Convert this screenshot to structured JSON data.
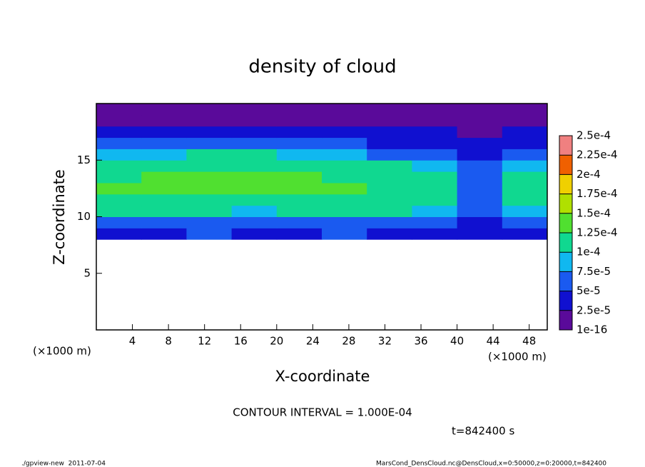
{
  "chart_data": {
    "type": "heatmap",
    "title": "density of cloud",
    "x_label": "X-coordinate",
    "y_label": "Z-coordinate",
    "x_unit": "(×1000 m)",
    "y_unit": "(×1000 m)",
    "xlim": [
      0,
      50
    ],
    "xticks": [
      4,
      8,
      12,
      16,
      20,
      24,
      28,
      32,
      36,
      40,
      44,
      48
    ],
    "ylim": [
      0,
      20
    ],
    "yticks": [
      5,
      10,
      15
    ],
    "x_edges": [
      0,
      5,
      10,
      15,
      20,
      25,
      30,
      35,
      40,
      45,
      50
    ],
    "z_edges": [
      8,
      9,
      10,
      11,
      12,
      13,
      14,
      15,
      16,
      17,
      18,
      19,
      20
    ],
    "values": [
      [
        4e-05,
        4e-05,
        5e-05,
        4e-05,
        4e-05,
        5e-05,
        4e-05,
        4e-05,
        3e-05,
        4e-05
      ],
      [
        7e-05,
        7e-05,
        7e-05,
        6e-05,
        7e-05,
        7e-05,
        7e-05,
        6e-05,
        4e-05,
        6e-05
      ],
      [
        0.0001,
        0.0001,
        0.0001,
        8e-05,
        0.0001,
        0.0001,
        0.0001,
        8e-05,
        5e-05,
        8e-05
      ],
      [
        0.00012,
        0.00012,
        0.00012,
        0.00011,
        0.00012,
        0.00012,
        0.00011,
        0.0001,
        6e-05,
        0.0001
      ],
      [
        0.00013,
        0.00013,
        0.00013,
        0.00013,
        0.00013,
        0.00013,
        0.00012,
        0.00011,
        7e-05,
        0.00012
      ],
      [
        0.00012,
        0.00013,
        0.00013,
        0.00013,
        0.00013,
        0.00012,
        0.00012,
        0.0001,
        7e-05,
        0.00012
      ],
      [
        0.0001,
        0.00011,
        0.00012,
        0.00012,
        0.00012,
        0.00011,
        0.0001,
        8e-05,
        6e-05,
        9e-05
      ],
      [
        8e-05,
        8e-05,
        0.0001,
        0.0001,
        9e-05,
        8e-05,
        7e-05,
        6e-05,
        4e-05,
        6e-05
      ],
      [
        5e-05,
        5e-05,
        6e-05,
        6e-05,
        5e-05,
        5e-05,
        4e-05,
        4e-05,
        3e-05,
        4e-05
      ],
      [
        3e-05,
        3e-05,
        3e-05,
        4e-05,
        3e-05,
        3e-05,
        3e-05,
        3e-05,
        2e-05,
        3e-05
      ],
      [
        2e-05,
        2e-05,
        1e-05,
        2e-05,
        2e-05,
        2e-05,
        2e-05,
        2e-05,
        2e-05,
        2e-05
      ],
      [
        1e-05,
        1e-05,
        1e-05,
        1e-05,
        1e-05,
        1e-05,
        1e-05,
        1e-05,
        1e-05,
        1e-05
      ]
    ],
    "colorbar_levels": [
      {
        "value": 1e-16,
        "label": "1e-16"
      },
      {
        "value": 2.5e-05,
        "label": "2.5e-5"
      },
      {
        "value": 5e-05,
        "label": "5e-5"
      },
      {
        "value": 7.5e-05,
        "label": "7.5e-5"
      },
      {
        "value": 0.0001,
        "label": "1e-4"
      },
      {
        "value": 0.000125,
        "label": "1.25e-4"
      },
      {
        "value": 0.00015,
        "label": "1.5e-4"
      },
      {
        "value": 0.000175,
        "label": "1.75e-4"
      },
      {
        "value": 0.0002,
        "label": "2e-4"
      },
      {
        "value": 0.000225,
        "label": "2.25e-4"
      },
      {
        "value": 0.00025,
        "label": "2.5e-4"
      }
    ],
    "colorbar_colors": [
      "#5a0a9a",
      "#1010d0",
      "#1a5af0",
      "#10b8f0",
      "#10d890",
      "#50e030",
      "#b0e000",
      "#f0d000",
      "#f06000",
      "#f08080"
    ],
    "contour_note": "CONTOUR INTERVAL = 1.000E-04",
    "time_note": "t=842400 s",
    "footer_left": "./gpview-new  2011-07-04",
    "footer_right": "MarsCond_DensCloud.nc@DensCloud,x=0:50000,z=0:20000,t=842400"
  }
}
